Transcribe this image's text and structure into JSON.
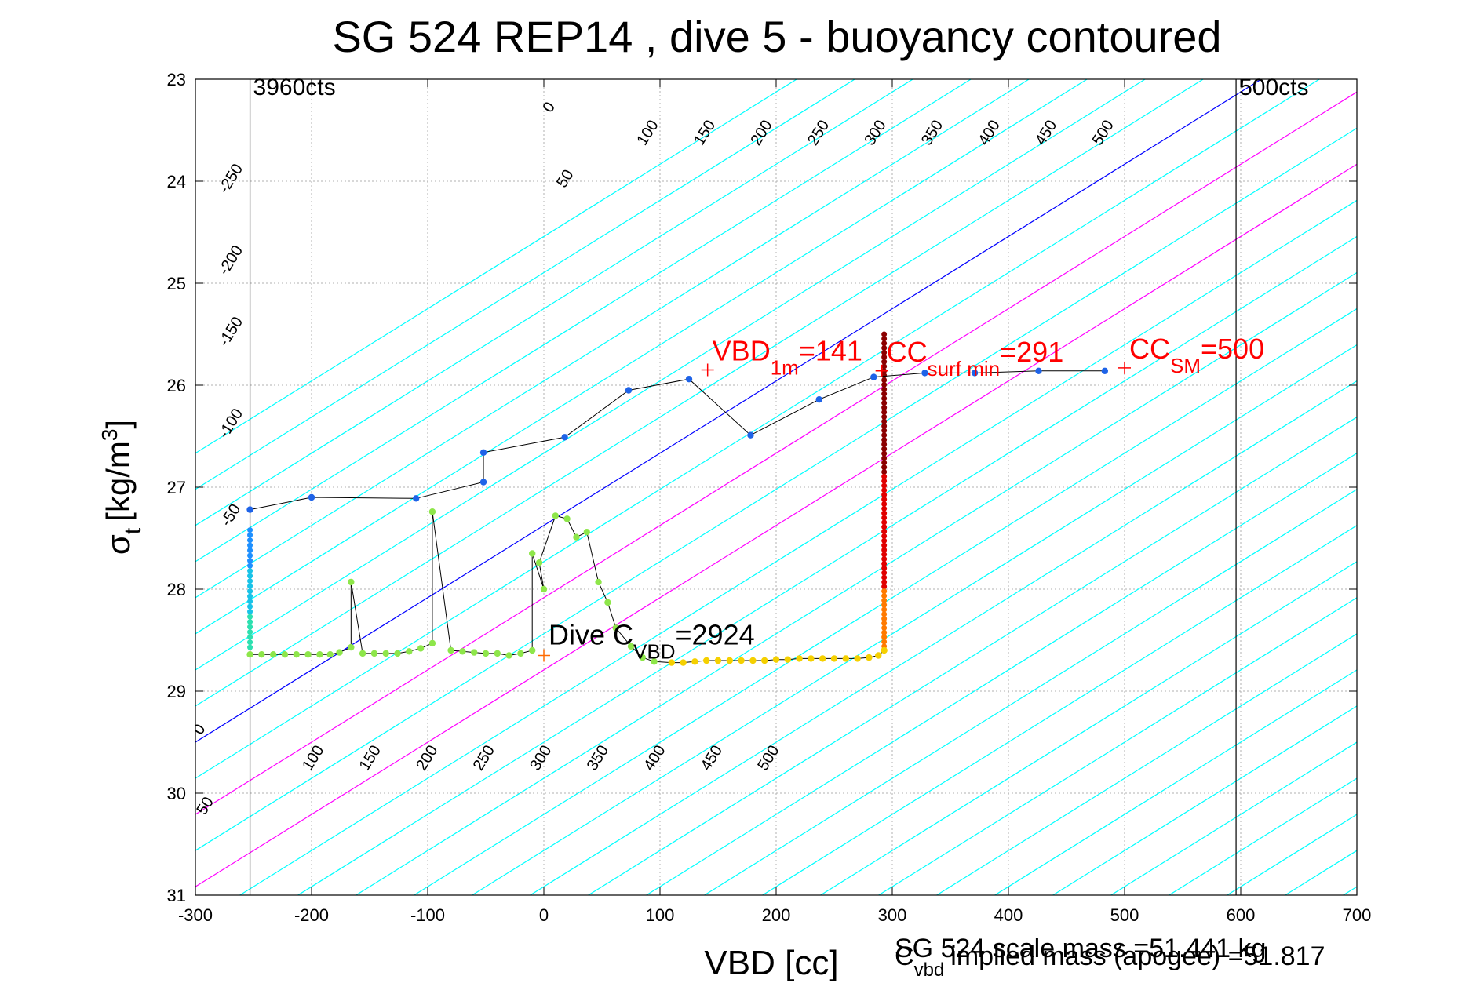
{
  "chart_data": {
    "type": "scatter",
    "title": "SG 524   REP14  , dive 5 - buoyancy contoured",
    "xlabel": "VBD [cc]",
    "ylabel_base": "σ",
    "ylabel_sub": "t",
    "ylabel_unit": "[kg/m",
    "ylabel_unit_sup": "3",
    "ylabel_unit_close": "]",
    "xlim": [
      -300,
      700
    ],
    "ylim": [
      23,
      31
    ],
    "y_reversed": true,
    "grid": true,
    "xticks": [
      -300,
      -200,
      -100,
      0,
      100,
      200,
      300,
      400,
      500,
      600,
      700
    ],
    "yticks": [
      23,
      24,
      25,
      26,
      27,
      28,
      29,
      30,
      31
    ],
    "vlines": [
      {
        "x": -253,
        "label": "3960cts"
      },
      {
        "x": 596,
        "label": "500cts"
      },
      {
        "x": 293,
        "label": ""
      }
    ],
    "contour_upper_labels": [
      "-250",
      "-200",
      "-150",
      "-100",
      "-50",
      "0",
      "50",
      "100",
      "150",
      "200",
      "250",
      "300",
      "350",
      "400",
      "450",
      "500"
    ],
    "contour_lower_labels": [
      "0",
      "50",
      "100",
      "150",
      "200",
      "250",
      "300",
      "350",
      "400",
      "450",
      "500"
    ],
    "contour_colors": {
      "zero": "#0000ff",
      "magenta": "#ff00ff",
      "other": "#00ffff"
    },
    "series": [
      {
        "color": "#1e63e8",
        "points": [
          [
            -253,
            27.22
          ],
          [
            -200,
            27.1
          ],
          [
            -110,
            27.11
          ],
          [
            -52,
            26.95
          ],
          [
            -52,
            26.66
          ],
          [
            18,
            26.51
          ],
          [
            73,
            26.05
          ],
          [
            125,
            25.94
          ],
          [
            178,
            26.49
          ],
          [
            237,
            26.14
          ],
          [
            284,
            25.92
          ],
          [
            328,
            25.88
          ],
          [
            371,
            25.88
          ],
          [
            426,
            25.86
          ],
          [
            483,
            25.86
          ]
        ]
      },
      {
        "color": "#8ee64a",
        "points": [
          [
            -253,
            28.64
          ],
          [
            -243,
            28.64
          ],
          [
            -233,
            28.64
          ],
          [
            -223,
            28.64
          ],
          [
            -213,
            28.64
          ],
          [
            -203,
            28.64
          ],
          [
            -193,
            28.64
          ],
          [
            -184,
            28.64
          ],
          [
            -176,
            28.62
          ],
          [
            -166,
            28.57
          ],
          [
            -166,
            27.93
          ],
          [
            -156,
            28.63
          ],
          [
            -146,
            28.63
          ],
          [
            -136,
            28.63
          ],
          [
            -126,
            28.63
          ],
          [
            -116,
            28.61
          ],
          [
            -106,
            28.58
          ],
          [
            -96,
            28.53
          ],
          [
            -96,
            27.24
          ],
          [
            -80,
            28.6
          ],
          [
            -70,
            28.61
          ],
          [
            -60,
            28.62
          ],
          [
            -50,
            28.63
          ],
          [
            -40,
            28.63
          ],
          [
            -30,
            28.65
          ],
          [
            -20,
            28.63
          ],
          [
            -10,
            28.6
          ],
          [
            -10,
            27.65
          ],
          [
            0,
            28.0
          ],
          [
            -4,
            27.74
          ],
          [
            10,
            27.28
          ],
          [
            20,
            27.31
          ],
          [
            28,
            27.49
          ],
          [
            37,
            27.44
          ],
          [
            47,
            27.93
          ],
          [
            55,
            28.13
          ],
          [
            62,
            28.38
          ],
          [
            75,
            28.56
          ],
          [
            85,
            28.67
          ],
          [
            95,
            28.71
          ]
        ]
      },
      {
        "color": "#f5d000",
        "points": [
          [
            110,
            28.72
          ],
          [
            120,
            28.72
          ],
          [
            130,
            28.71
          ],
          [
            140,
            28.7
          ],
          [
            150,
            28.7
          ],
          [
            160,
            28.7
          ],
          [
            170,
            28.7
          ],
          [
            180,
            28.7
          ],
          [
            190,
            28.7
          ],
          [
            200,
            28.69
          ],
          [
            210,
            28.69
          ],
          [
            220,
            28.68
          ],
          [
            230,
            28.68
          ],
          [
            240,
            28.68
          ],
          [
            250,
            28.68
          ],
          [
            260,
            28.68
          ],
          [
            270,
            28.68
          ],
          [
            280,
            28.67
          ],
          [
            288,
            28.65
          ],
          [
            293,
            28.6
          ]
        ]
      }
    ],
    "cyan_column": {
      "x": -253,
      "y_from": 27.42,
      "y_to": 28.62
    },
    "vertical_column": {
      "x": 293,
      "y_from": 25.5,
      "y_to": 28.6
    },
    "markers": [
      {
        "x": 141,
        "y": 25.85,
        "color": "#ff0000",
        "label": "VBD",
        "sub": "1m",
        "rest": "=141"
      },
      {
        "x": 291,
        "y": 25.86,
        "color": "#ff0000",
        "label": "CC",
        "sub": "surf min",
        "rest": "=291"
      },
      {
        "x": 500,
        "y": 25.83,
        "color": "#ff0000",
        "label": "CC",
        "sub": "SM",
        "rest": "=500"
      },
      {
        "x": 0,
        "y": 28.65,
        "color": "#ff6a00",
        "label": "Dive C",
        "sub": "VBD",
        "rest": "=2924"
      }
    ],
    "footer_line1": "SG 524 scale mass =51.441 kg",
    "footer_line2_base": "C",
    "footer_line2_sub": "vbd",
    "footer_line2_rest": "implied mass (apogee) =51.817"
  }
}
